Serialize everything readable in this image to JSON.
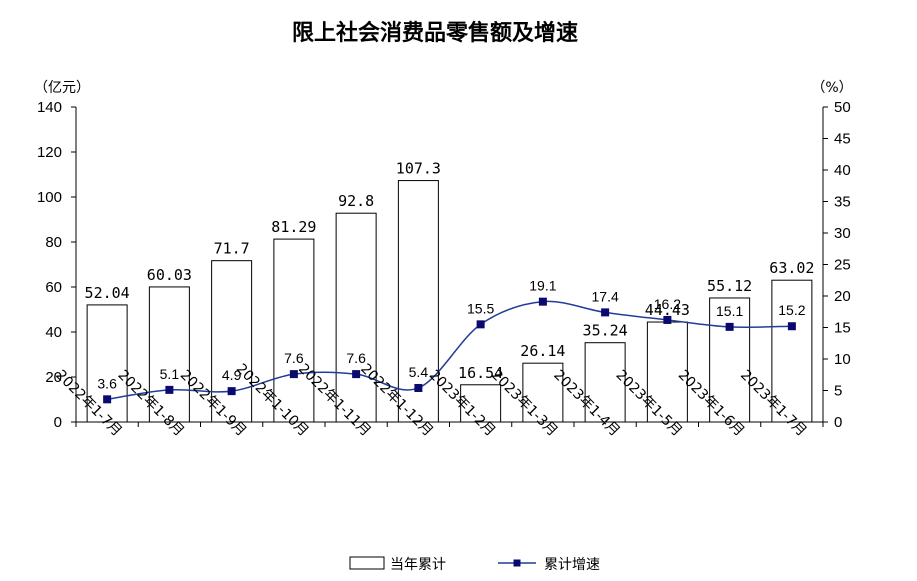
{
  "chart_data": {
    "type": "bar+line",
    "title": "限上社会消费品零售额及增速",
    "left_unit": "（亿元）",
    "right_unit": "（%）",
    "categories": [
      "2022年1-7月",
      "2022年1-8月",
      "2022年1-9月",
      "2022年1-10月",
      "2022年1-11月",
      "2022年1-12月",
      "2023年1-2月",
      "2023年1-3月",
      "2023年1-4月",
      "2023年1-5月",
      "2023年1-6月",
      "2023年1-7月"
    ],
    "series": [
      {
        "name": "当年累计",
        "type": "bar",
        "axis": "left",
        "values": [
          52.04,
          60.03,
          71.7,
          81.29,
          92.8,
          107.3,
          16.54,
          26.14,
          35.24,
          44.43,
          55.12,
          63.02
        ],
        "labels": [
          "52.04",
          "60.03",
          "71.7",
          "81.29",
          "92.8",
          "107.3",
          "16.54",
          "26.14",
          "35.24",
          "44.43",
          "55.12",
          "63.02"
        ]
      },
      {
        "name": "累计增速",
        "type": "line",
        "axis": "right",
        "values": [
          3.6,
          5.1,
          4.9,
          7.6,
          7.6,
          5.4,
          15.5,
          19.1,
          17.4,
          16.2,
          15.1,
          15.2
        ],
        "labels": [
          "3.6",
          "5.1",
          "4.9",
          "7.6",
          "7.6",
          "5.4",
          "15.5",
          "19.1",
          "17.4",
          "16.2",
          "15.1",
          "15.2"
        ]
      }
    ],
    "y_left": {
      "min": 0,
      "max": 140,
      "ticks": [
        0,
        20,
        40,
        60,
        80,
        100,
        120,
        140
      ]
    },
    "y_right": {
      "min": 0,
      "max": 50,
      "ticks": [
        0,
        5,
        10,
        15,
        20,
        25,
        30,
        35,
        40,
        45,
        50
      ]
    },
    "grid": false,
    "legend_position": "bottom",
    "colors": {
      "bar_fill": "#ffffff",
      "bar_stroke": "#000000",
      "line": "#1f3d99",
      "marker": "#0a0a6e"
    }
  }
}
